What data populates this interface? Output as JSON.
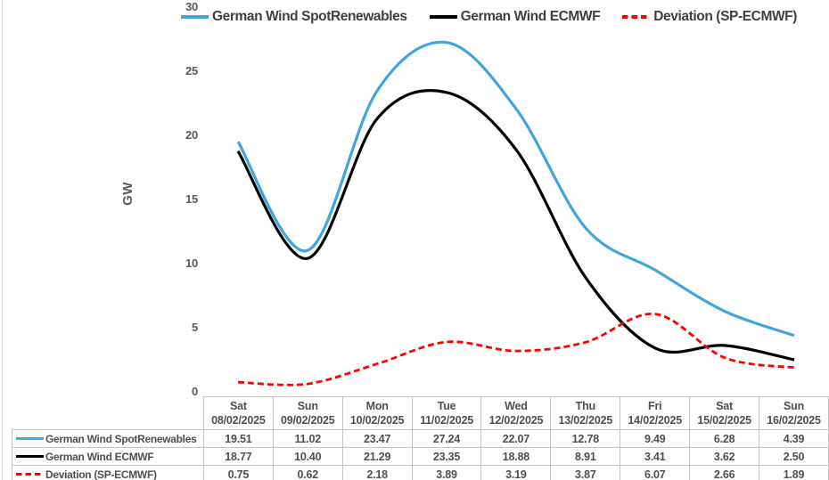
{
  "window": {
    "left_edge_color": "#d9d9d9",
    "border_color": "#c3c3c3"
  },
  "chart_data": {
    "type": "line",
    "title": "",
    "xlabel": "",
    "ylabel": "GW",
    "ylim": [
      0,
      30
    ],
    "yticks": [
      0,
      5,
      10,
      15,
      20,
      25,
      30
    ],
    "grid": false,
    "legend_position": "top",
    "smooth_lines": true,
    "value_decimals": 2,
    "categories": [
      {
        "day": "Sat",
        "date": "08/02/2025"
      },
      {
        "day": "Sun",
        "date": "09/02/2025"
      },
      {
        "day": "Mon",
        "date": "10/02/2025"
      },
      {
        "day": "Tue",
        "date": "11/02/2025"
      },
      {
        "day": "Wed",
        "date": "12/02/2025"
      },
      {
        "day": "Thu",
        "date": "13/02/2025"
      },
      {
        "day": "Fri",
        "date": "14/02/2025"
      },
      {
        "day": "Sat",
        "date": "15/02/2025"
      },
      {
        "day": "Sun",
        "date": "16/02/2025"
      }
    ],
    "series": [
      {
        "name": "German Wind SpotRenewables",
        "color": "#41a4dc",
        "style": "solid",
        "values": [
          19.51,
          11.02,
          23.47,
          27.24,
          22.07,
          12.78,
          9.49,
          6.28,
          4.39
        ]
      },
      {
        "name": "German Wind ECMWF",
        "color": "#000000",
        "style": "solid",
        "values": [
          18.77,
          10.4,
          21.29,
          23.35,
          18.88,
          8.91,
          3.41,
          3.62,
          2.5
        ]
      },
      {
        "name": "Deviation (SP-ECMWF)",
        "color": "#fe0000",
        "style": "dashed",
        "values": [
          0.75,
          0.62,
          2.18,
          3.89,
          3.19,
          3.87,
          6.07,
          2.66,
          1.89
        ]
      }
    ]
  }
}
